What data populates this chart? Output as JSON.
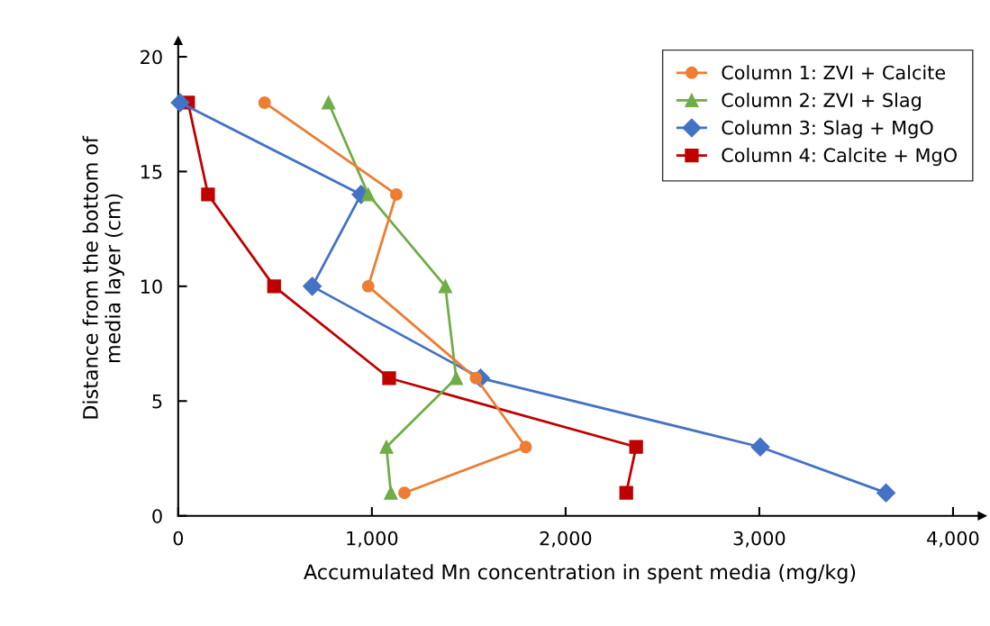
{
  "chart_data": {
    "type": "line",
    "xlabel": "Accumulated Mn concentration in spent media (mg/kg)",
    "ylabel": "Distance from the bottom of\nmedia layer (cm)",
    "xlim": [
      0,
      4150
    ],
    "xticks": [
      0,
      {
        "value": 1000,
        "label": "1,000"
      },
      {
        "value": 2000,
        "label": "2,000"
      },
      {
        "value": 3000,
        "label": "3,000"
      },
      {
        "value": 4000,
        "label": "4,000"
      }
    ],
    "ylim": [
      0,
      20.7
    ],
    "yticks": [
      0,
      5,
      10,
      15,
      20
    ],
    "grid": false,
    "legend": "top right",
    "line_style": "solid",
    "series": [
      {
        "name": "Column 1: ZVI + Calcite",
        "color": "#ed7d31",
        "marker": "circle",
        "x": [
          446,
          1126,
          981,
          1537,
          1794,
          1168
        ],
        "values": [
          18,
          14,
          10,
          6,
          3,
          1
        ]
      },
      {
        "name": "Column 2: ZVI + Slag",
        "color": "#70ad47",
        "marker": "triangle",
        "x": [
          776,
          981,
          1379,
          1435,
          1075,
          1098
        ],
        "values": [
          18,
          14,
          10,
          6,
          3,
          1
        ]
      },
      {
        "name": "Column 3: Slag + MgO",
        "color": "#4472c4",
        "marker": "diamond",
        "x": [
          10,
          944,
          692,
          1561,
          3005,
          3654
        ],
        "values": [
          18,
          14,
          10,
          6,
          3,
          1
        ]
      },
      {
        "name": "Column 4: Calcite + MgO",
        "color": "#c00000",
        "marker": "square",
        "x": [
          51,
          154,
          495,
          1089,
          2364,
          2313
        ],
        "values": [
          18,
          14,
          10,
          6,
          3,
          1
        ]
      }
    ]
  }
}
